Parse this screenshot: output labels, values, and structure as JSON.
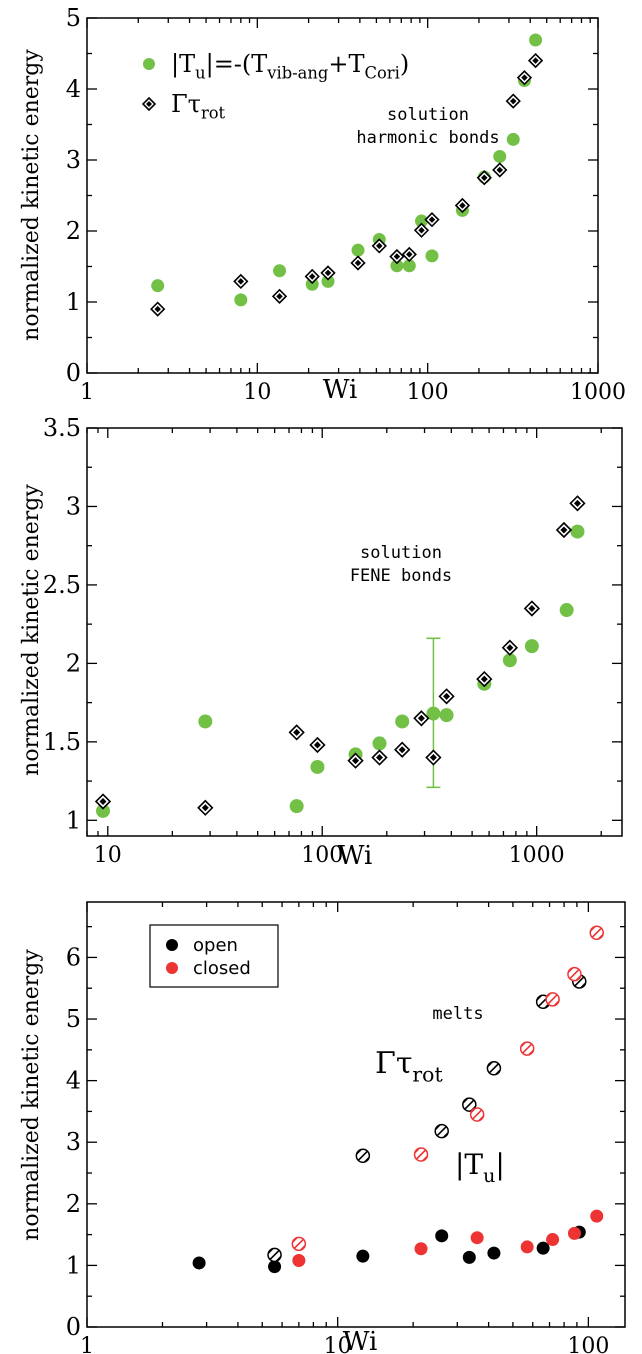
{
  "colors": {
    "green": "#72c146",
    "red": "#ee3333",
    "black": "#000000",
    "axis": "#000000"
  },
  "chart_data": [
    {
      "type": "scatter",
      "x_scale": "log",
      "xlim": [
        1,
        1000
      ],
      "ylim": [
        0,
        5
      ],
      "xlabel": "Wi",
      "ylabel": "normalized kinetic energy",
      "xticks": [
        1,
        10,
        100,
        1000
      ],
      "xtick_labels": [
        "1",
        "10",
        "100",
        "1000"
      ],
      "yticks": [
        0,
        1,
        2,
        3,
        4,
        5
      ],
      "ytick_labels": [
        "0",
        "1",
        "2",
        "3",
        "4",
        "5"
      ],
      "annotations": [
        {
          "text": "solution"
        },
        {
          "text": "harmonic bonds"
        }
      ],
      "legend": {
        "position": "top-left",
        "entries": [
          {
            "series": 0,
            "label_parts": [
              {
                "t": "|T",
                "s": "n"
              },
              {
                "t": "u",
                "s": "sub"
              },
              {
                "t": "|=-(T",
                "s": "n"
              },
              {
                "t": "vib-ang",
                "s": "sub"
              },
              {
                "t": "+T",
                "s": "n"
              },
              {
                "t": "Cori",
                "s": "sub"
              },
              {
                "t": ")",
                "s": "n"
              }
            ]
          },
          {
            "series": 1,
            "label_parts": [
              {
                "t": "Γτ",
                "s": "n"
              },
              {
                "t": "rot",
                "s": "sub"
              }
            ]
          }
        ]
      },
      "series": [
        {
          "marker": "circle",
          "color": "green",
          "x": [
            2.6,
            8,
            13.5,
            21,
            26,
            39,
            52,
            66,
            78,
            92,
            106,
            160,
            215,
            265,
            318,
            370,
            430
          ],
          "y": [
            1.23,
            1.03,
            1.44,
            1.25,
            1.29,
            1.73,
            1.88,
            1.51,
            1.51,
            2.14,
            1.65,
            2.29,
            2.76,
            3.05,
            3.29,
            4.12,
            4.69
          ]
        },
        {
          "marker": "diamond",
          "color": "black",
          "x": [
            2.6,
            8,
            13.5,
            21,
            26,
            39,
            52,
            66,
            78,
            92,
            106,
            160,
            215,
            265,
            318,
            370,
            430
          ],
          "y": [
            0.9,
            1.29,
            1.08,
            1.36,
            1.41,
            1.55,
            1.79,
            1.64,
            1.67,
            2.01,
            2.16,
            2.36,
            2.75,
            2.86,
            3.83,
            4.16,
            4.4
          ]
        }
      ]
    },
    {
      "type": "scatter",
      "x_scale": "log",
      "xlim": [
        8,
        2500
      ],
      "ylim": [
        0.9,
        3.5
      ],
      "xlabel": "Wi",
      "ylabel": "normalized kinetic energy",
      "xticks": [
        10,
        100,
        1000
      ],
      "xtick_labels": [
        "10",
        "100",
        "1000"
      ],
      "yticks": [
        1,
        1.5,
        2,
        2.5,
        3,
        3.5
      ],
      "ytick_labels": [
        "1",
        "1.5",
        "2",
        "2.5",
        "3",
        "3.5"
      ],
      "annotations": [
        {
          "text": "solution"
        },
        {
          "text": "FENE bonds"
        }
      ],
      "errorbar": {
        "x": 330,
        "y_low": 1.21,
        "y_high": 2.16,
        "color": "green"
      },
      "series": [
        {
          "marker": "circle",
          "color": "green",
          "x": [
            9.5,
            28.5,
            76,
            95,
            143,
            185,
            236,
            330,
            380,
            570,
            750,
            950,
            1380,
            1550
          ],
          "y": [
            1.06,
            1.63,
            1.09,
            1.34,
            1.42,
            1.49,
            1.63,
            1.68,
            1.67,
            1.87,
            2.02,
            2.11,
            2.34,
            2.84
          ]
        },
        {
          "marker": "diamond",
          "color": "black",
          "x": [
            9.5,
            28.5,
            76,
            95,
            143,
            185,
            236,
            290,
            330,
            380,
            570,
            750,
            950,
            1340,
            1550
          ],
          "y": [
            1.12,
            1.08,
            1.56,
            1.48,
            1.38,
            1.4,
            1.45,
            1.65,
            1.4,
            1.79,
            1.9,
            2.1,
            2.35,
            2.85,
            3.02
          ]
        }
      ]
    },
    {
      "type": "scatter",
      "x_scale": "log",
      "xlim": [
        1,
        140
      ],
      "ylim": [
        0,
        6.9
      ],
      "xlabel": "Wi",
      "ylabel": "normalized kinetic energy",
      "xticks": [
        1,
        10,
        100
      ],
      "xtick_labels": [
        "1",
        "10",
        "100"
      ],
      "yticks": [
        0,
        1,
        2,
        3,
        4,
        5,
        6
      ],
      "ytick_labels": [
        "0",
        "1",
        "2",
        "3",
        "4",
        "5",
        "6"
      ],
      "annotations": [
        {
          "text": "melts"
        }
      ],
      "label_Gamma": [
        {
          "t": "Γτ",
          "s": "n"
        },
        {
          "t": "rot",
          "s": "sub"
        }
      ],
      "label_Tu": [
        {
          "t": "|T",
          "s": "n"
        },
        {
          "t": "u",
          "s": "sub"
        },
        {
          "t": "|",
          "s": "n"
        }
      ],
      "legend": {
        "position": "top-left",
        "entries": [
          {
            "color": "black",
            "label": "open"
          },
          {
            "color": "red",
            "label": "closed"
          }
        ]
      },
      "series": [
        {
          "name": "open",
          "marker": "circle",
          "color": "black",
          "x": [
            2.8,
            5.6,
            12.6,
            26,
            33.5,
            42,
            66,
            92
          ],
          "y": [
            1.04,
            0.98,
            1.15,
            1.48,
            1.13,
            1.2,
            1.28,
            1.54
          ]
        },
        {
          "name": "closed",
          "marker": "circle",
          "color": "red",
          "x": [
            7,
            21.5,
            36,
            57,
            72,
            88,
            108
          ],
          "y": [
            1.08,
            1.27,
            1.45,
            1.3,
            1.42,
            1.52,
            1.8
          ]
        },
        {
          "name": "open",
          "marker": "hatched",
          "color": "black",
          "x": [
            5.6,
            12.6,
            26,
            33.5,
            42,
            66,
            92
          ],
          "y": [
            1.17,
            2.78,
            3.18,
            3.61,
            4.2,
            5.28,
            5.61
          ]
        },
        {
          "name": "closed",
          "marker": "hatched",
          "color": "red",
          "x": [
            7,
            21.5,
            36,
            57,
            72,
            88,
            108
          ],
          "y": [
            1.35,
            2.8,
            3.45,
            4.52,
            5.32,
            5.73,
            6.4
          ]
        }
      ]
    }
  ]
}
